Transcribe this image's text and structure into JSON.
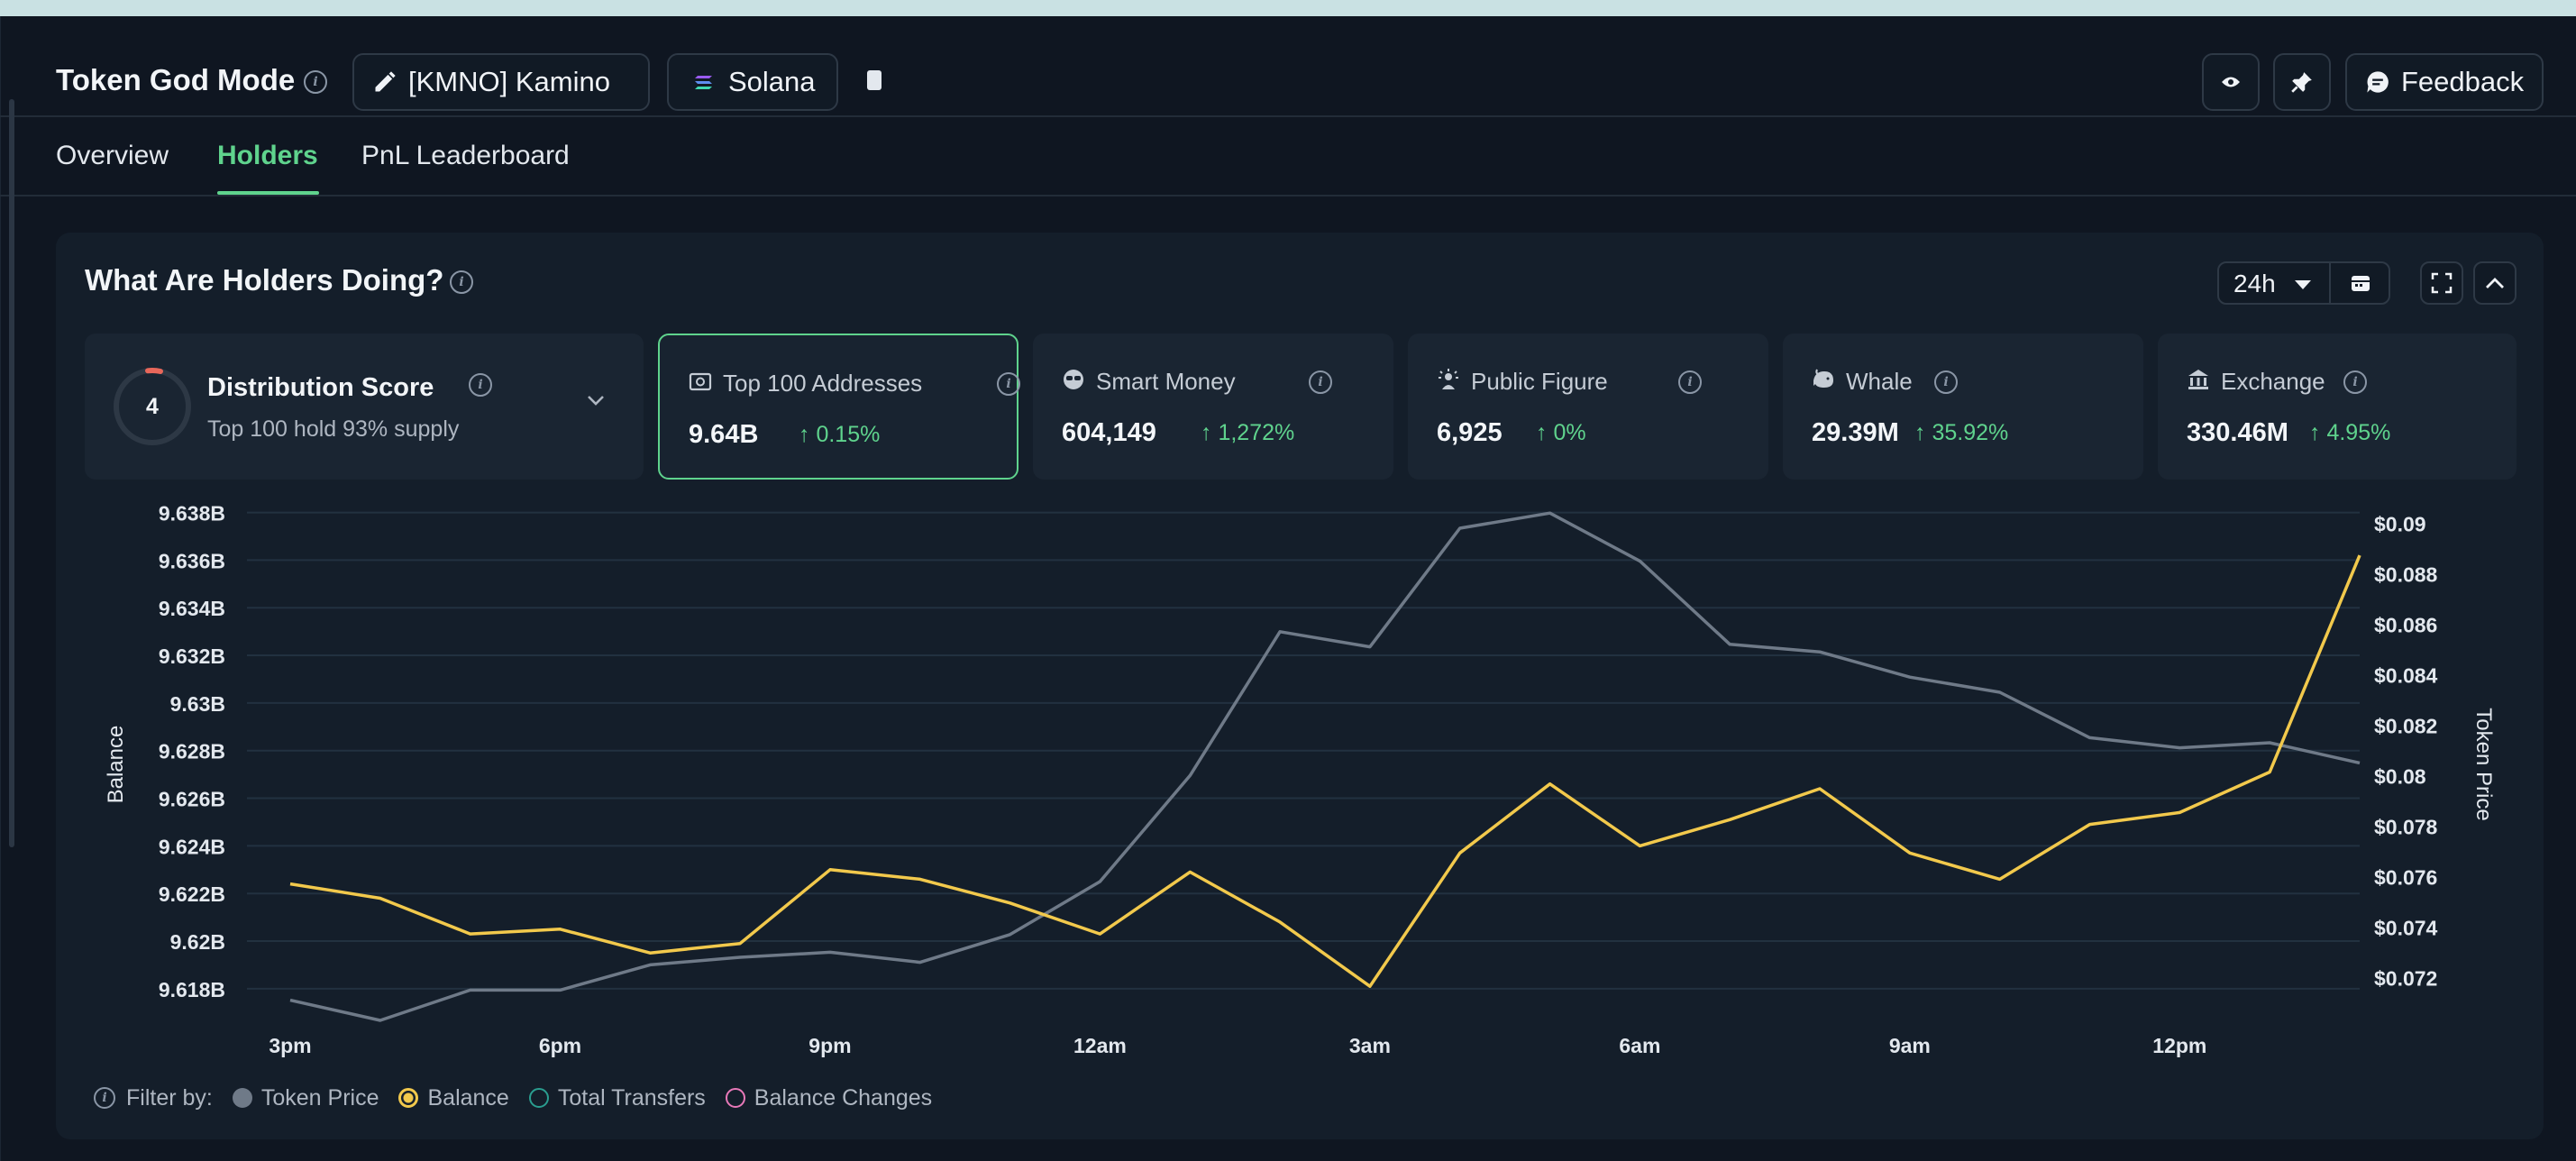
{
  "header": {
    "title": "Token God Mode",
    "token_label": "[KMNO] Kamino",
    "chain_label": "Solana",
    "feedback_label": "Feedback"
  },
  "tabs": [
    {
      "label": "Overview",
      "active": false
    },
    {
      "label": "Holders",
      "active": true
    },
    {
      "label": "PnL Leaderboard",
      "active": false
    }
  ],
  "panel": {
    "title": "What Are Holders Doing?",
    "time_range": "24h"
  },
  "distribution": {
    "score": "4",
    "title": "Distribution Score",
    "subtitle": "Top 100 hold 93% supply"
  },
  "cards": [
    {
      "label": "Top 100 Addresses",
      "value": "9.64B",
      "change": "↑ 0.15%",
      "icon": "wallet-icon",
      "selected": true
    },
    {
      "label": "Smart Money",
      "value": "604,149",
      "change": "↑ 1,272%",
      "icon": "sunglasses-icon",
      "selected": false
    },
    {
      "label": "Public Figure",
      "value": "6,925",
      "change": "↑ 0%",
      "icon": "star-person-icon",
      "selected": false
    },
    {
      "label": "Whale",
      "value": "29.39M",
      "change": "↑ 35.92%",
      "icon": "whale-icon",
      "selected": false
    },
    {
      "label": "Exchange",
      "value": "330.46M",
      "change": "↑ 4.95%",
      "icon": "bank-icon",
      "selected": false
    }
  ],
  "legend": {
    "prefix": "Filter by:",
    "items": [
      "Token Price",
      "Balance",
      "Total Transfers",
      "Balance Changes"
    ]
  },
  "colors": {
    "accent_green": "#5fd38d",
    "balance_line": "#f2c94c",
    "price_line": "#6f7a88",
    "transfers": "#2a9d8f",
    "balance_changes": "#e879b9"
  },
  "chart_data": {
    "type": "line",
    "xlabel": "",
    "ylabel": "Balance",
    "y2label": "Token Price",
    "x_ticks": [
      "3pm",
      "6pm",
      "9pm",
      "12am",
      "3am",
      "6am",
      "9am",
      "12pm"
    ],
    "y_ticks": [
      "9.638B",
      "9.636B",
      "9.634B",
      "9.632B",
      "9.63B",
      "9.628B",
      "9.626B",
      "9.624B",
      "9.622B",
      "9.62B",
      "9.618B"
    ],
    "y2_ticks": [
      "$0.09",
      "$0.088",
      "$0.086",
      "$0.084",
      "$0.082",
      "$0.08",
      "$0.078",
      "$0.076",
      "$0.074",
      "$0.072"
    ],
    "ylim": [
      9.6172,
      9.6384
    ],
    "y2lim": [
      0.0708,
      0.0908
    ],
    "grid": true,
    "series": [
      {
        "name": "Token Price",
        "axis": "right",
        "color": "#6f7a88",
        "values": [
          0.0711,
          0.0703,
          0.0715,
          0.0715,
          0.0725,
          0.0728,
          0.073,
          0.0726,
          0.0737,
          0.0758,
          0.08,
          0.0857,
          0.0851,
          0.0898,
          0.0904,
          0.0885,
          0.0852,
          0.0849,
          0.0839,
          0.0833,
          0.0815,
          0.0811,
          0.0813,
          0.0805
        ]
      },
      {
        "name": "Balance",
        "axis": "left",
        "color": "#f2c94c",
        "values": [
          9.6224,
          9.6218,
          9.6203,
          9.6205,
          9.6195,
          9.6199,
          9.623,
          9.6226,
          9.6216,
          9.6203,
          9.6229,
          9.6208,
          9.6181,
          9.6237,
          9.6266,
          9.624,
          9.6251,
          9.6264,
          9.6237,
          9.6226,
          9.6249,
          9.6254,
          9.6271,
          9.6362
        ]
      }
    ]
  }
}
